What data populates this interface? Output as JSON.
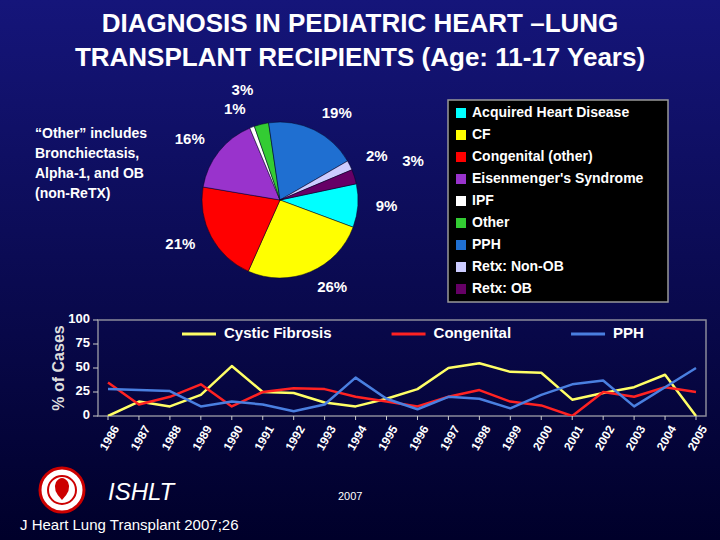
{
  "slide": {
    "title": [
      "DIAGNOSIS IN PEDIATRIC HEART –LUNG",
      "TRANSPLANT RECIPIENTS (Age: 11-17 Years)"
    ],
    "note": [
      "“Other” includes",
      "Bronchiectasis,",
      "Alpha-1, and OB",
      "(non-ReTX)"
    ],
    "organization": "ISHLT",
    "year_label": "2007",
    "citation": "J Heart Lung Transplant 2007;26"
  },
  "chart_data": [
    {
      "type": "pie",
      "categories": [
        "Acquired Heart Disease",
        "CF",
        "Congenital (other)",
        "Eisenmenger's Syndrome",
        "IPF",
        "Other",
        "PPH",
        "Retx: Non-OB",
        "Retx: OB"
      ],
      "values": [
        9,
        26,
        21,
        16,
        1,
        3,
        19,
        2,
        3
      ],
      "value_labels": [
        "9%",
        "26%",
        "21%",
        "16%",
        "1%",
        "3%",
        "19%",
        "2%",
        "3%"
      ],
      "colors": [
        "#00ffff",
        "#ffff00",
        "#ff0000",
        "#9933cc",
        "#ffffff",
        "#33cc33",
        "#1f6fd1",
        "#ccccff",
        "#660066"
      ],
      "legend": "right",
      "data_labels": true
    },
    {
      "type": "line",
      "categories": [
        "1986",
        "1987",
        "1988",
        "1989",
        "1990",
        "1991",
        "1992",
        "1993",
        "1994",
        "1995",
        "1996",
        "1997",
        "1998",
        "1999",
        "2000",
        "2001",
        "2002",
        "2003",
        "2004",
        "2005"
      ],
      "series": [
        {
          "name": "Cystic Fibrosis",
          "color": "#ffff66",
          "values": [
            0,
            15,
            10,
            22,
            52,
            25,
            24,
            14,
            10,
            18,
            28,
            50,
            55,
            46,
            45,
            17,
            24,
            30,
            43,
            0
          ]
        },
        {
          "name": "Congenital",
          "color": "#ff2222",
          "values": [
            35,
            12,
            20,
            33,
            10,
            25,
            29,
            28,
            20,
            15,
            10,
            20,
            27,
            15,
            11,
            0,
            25,
            20,
            30,
            25
          ]
        },
        {
          "name": "PPH",
          "color": "#4a7fe0",
          "values": [
            28,
            27,
            26,
            10,
            15,
            12,
            5,
            12,
            40,
            18,
            7,
            20,
            18,
            8,
            22,
            33,
            37,
            10,
            30,
            50
          ]
        }
      ],
      "y_label": "% of Cases",
      "ylim": [
        0,
        100
      ],
      "yticks": [
        0,
        25,
        50,
        75,
        100
      ],
      "grid": false,
      "legend": "top"
    }
  ]
}
